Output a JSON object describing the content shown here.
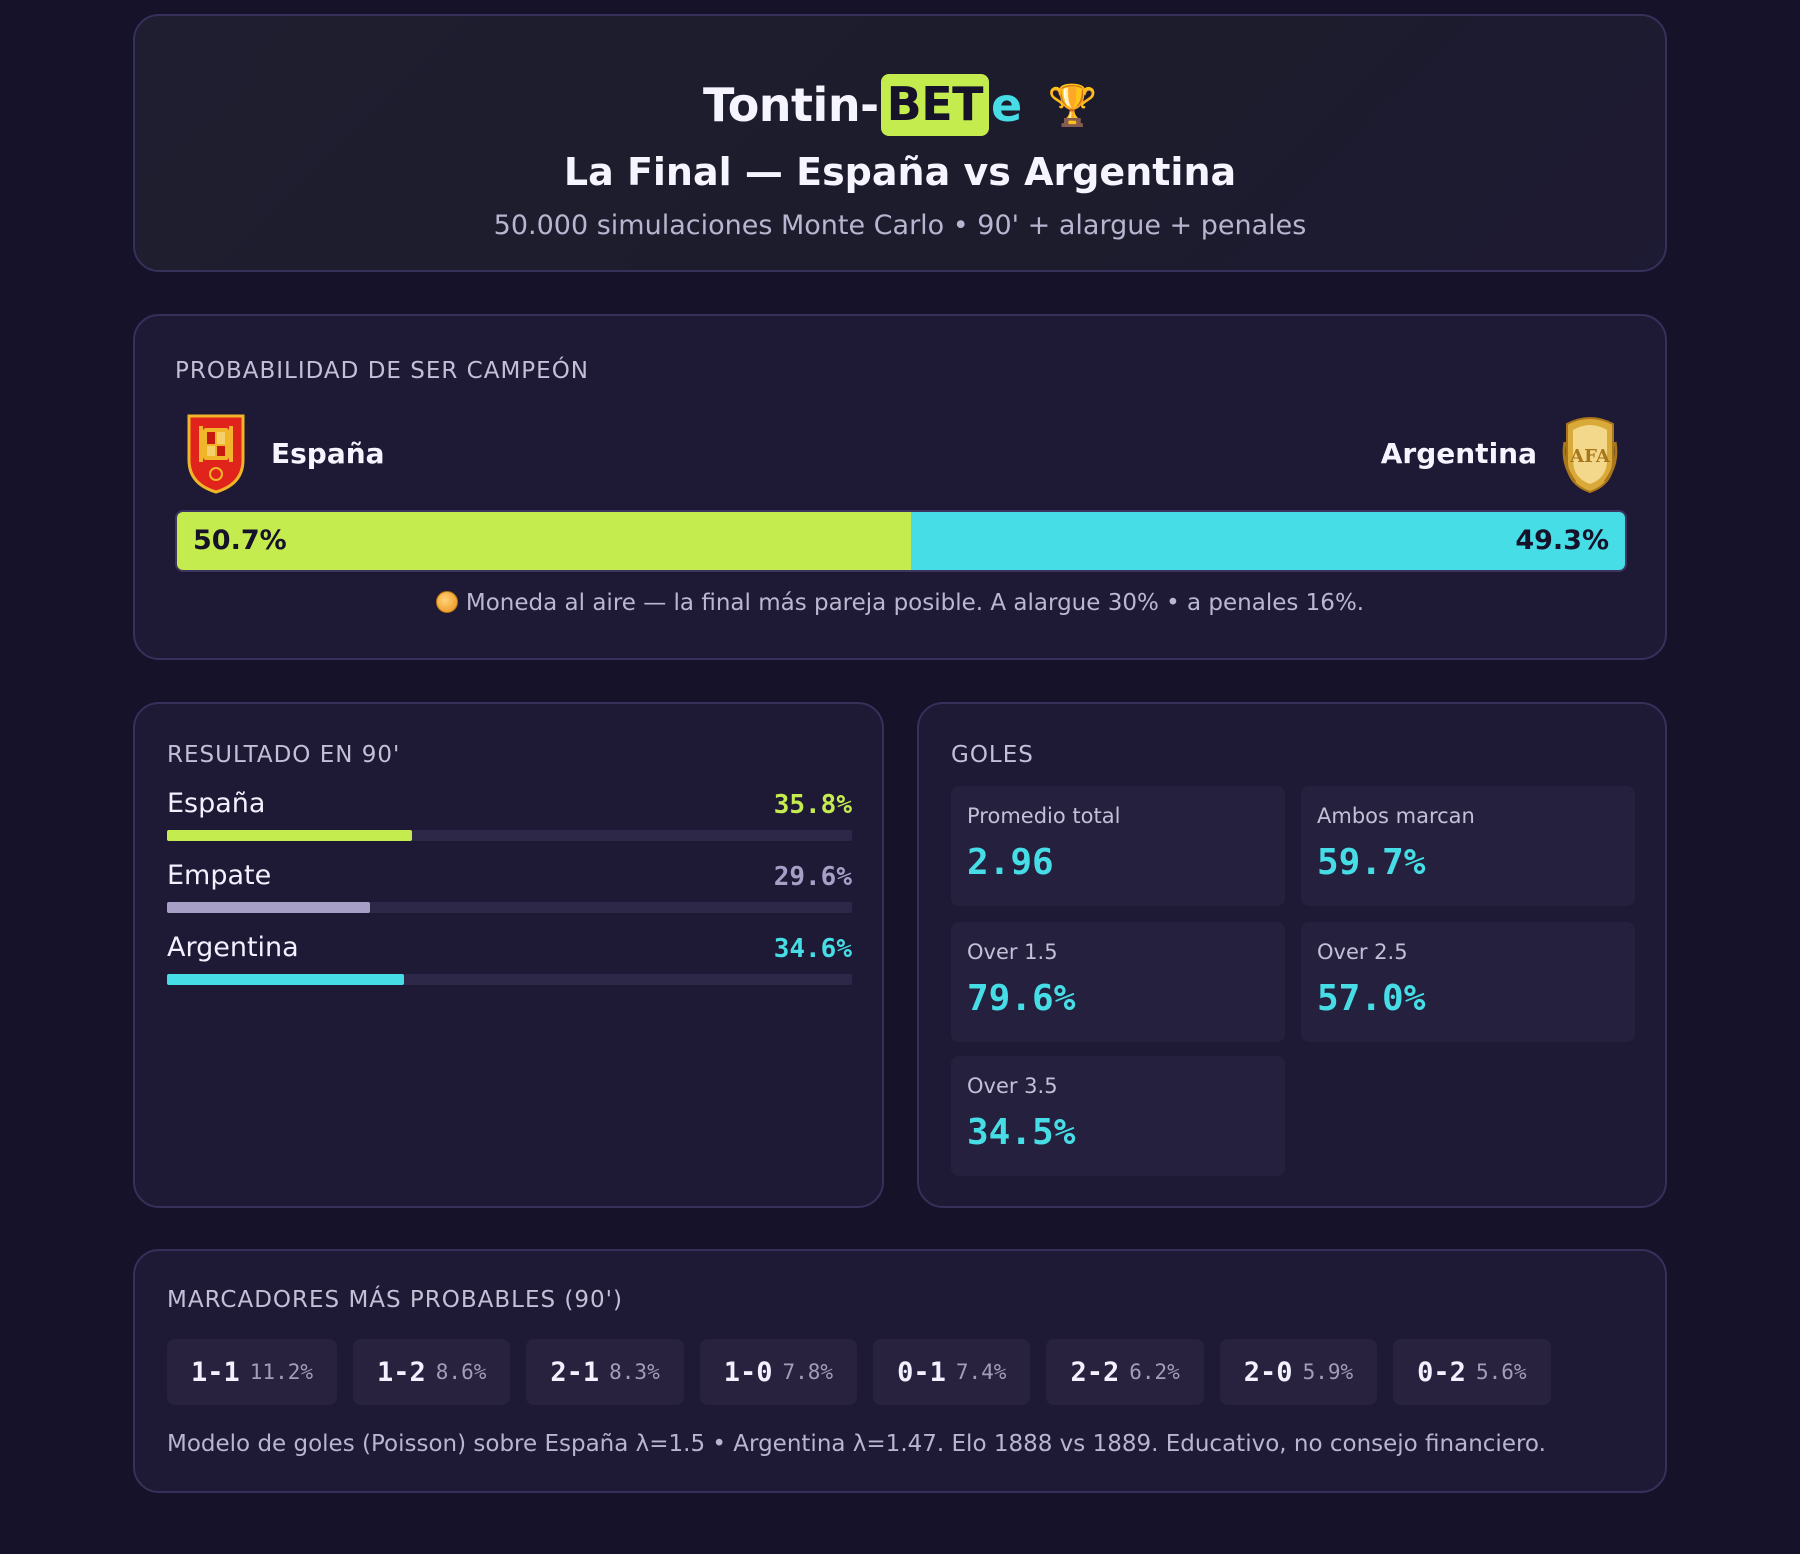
{
  "header": {
    "brand_part1": "Tontin-",
    "brand_part2": "BET",
    "brand_part3": "e",
    "brand_icon": "trophy-icon",
    "subtitle": "La Final — España vs Argentina",
    "tagline": "50.000 simulaciones Monte Carlo • 90' + alargue + penales"
  },
  "champion": {
    "section_label": "PROBABILIDAD DE SER CAMPEÓN",
    "team_a": {
      "name": "España",
      "crest_icon": "spain-crest-icon",
      "pct_label": "50.7%",
      "pct_value": 50.7,
      "color": "#c5ec4f"
    },
    "team_b": {
      "name": "Argentina",
      "crest_icon": "afa-crest-icon",
      "pct_label": "49.3%",
      "pct_value": 49.3,
      "color": "#46dde6"
    },
    "note_icon": "coin-icon",
    "note": "Moneda al aire — la final más pareja posible. A alargue 30% • a penales 16%."
  },
  "result90": {
    "section_label": "RESULTADO EN 90'",
    "rows": [
      {
        "name": "España",
        "label": "35.8%",
        "value": 35.8,
        "color": "#c5ec4f"
      },
      {
        "name": "Empate",
        "label": "29.6%",
        "value": 29.6,
        "color": "#a79fc6"
      },
      {
        "name": "Argentina",
        "label": "34.6%",
        "value": 34.6,
        "color": "#46dde6"
      }
    ]
  },
  "goals": {
    "section_label": "GOLES",
    "stats": [
      {
        "label": "Promedio total",
        "value": "2.96"
      },
      {
        "label": "Ambos marcan",
        "value": "59.7%"
      },
      {
        "label": "Over 1.5",
        "value": "79.6%"
      },
      {
        "label": "Over 2.5",
        "value": "57.0%"
      },
      {
        "label": "Over 3.5",
        "value": "34.5%"
      }
    ]
  },
  "scores": {
    "section_label": "MARCADORES MÁS PROBABLES (90')",
    "items": [
      {
        "score": "1-1",
        "pct": "11.2%"
      },
      {
        "score": "1-2",
        "pct": "8.6%"
      },
      {
        "score": "2-1",
        "pct": "8.3%"
      },
      {
        "score": "1-0",
        "pct": "7.8%"
      },
      {
        "score": "0-1",
        "pct": "7.4%"
      },
      {
        "score": "2-2",
        "pct": "6.2%"
      },
      {
        "score": "2-0",
        "pct": "5.9%"
      },
      {
        "score": "0-2",
        "pct": "5.6%"
      }
    ],
    "footnote": "Modelo de goles (Poisson) sobre España λ=1.5 • Argentina λ=1.47. Elo 1888 vs 1889. Educativo, no consejo financiero."
  }
}
